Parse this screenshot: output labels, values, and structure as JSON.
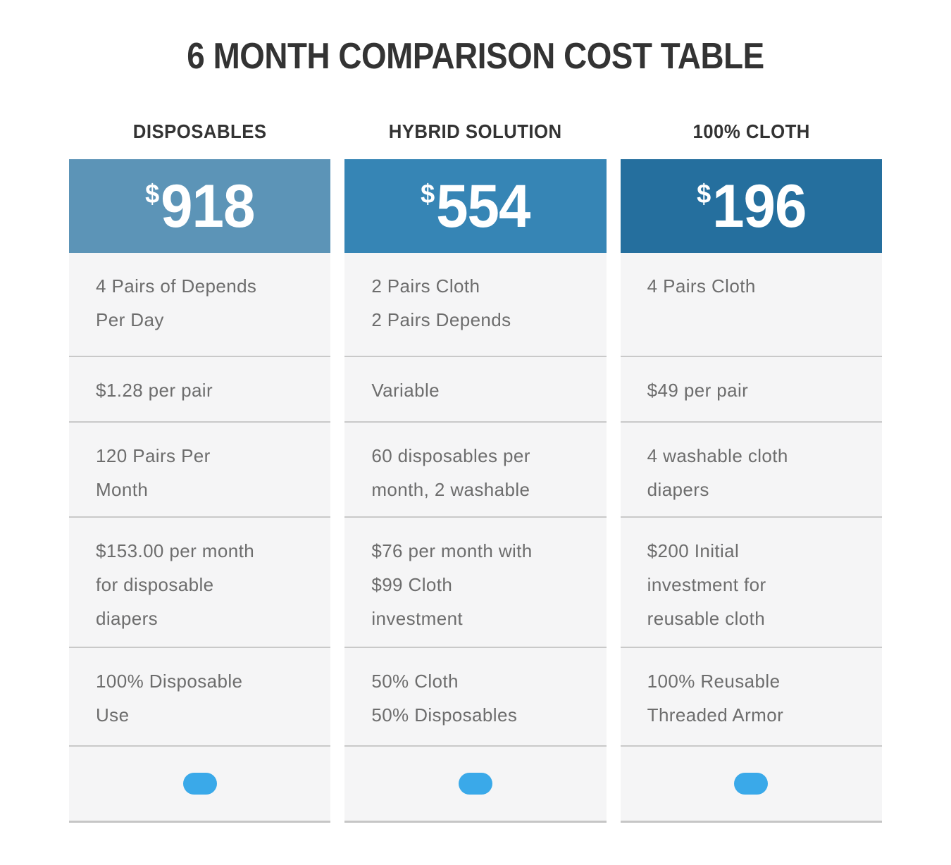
{
  "title": "6 MONTH COMPARISON COST TABLE",
  "colors": {
    "title_text": "#333333",
    "row_background": "#f5f5f6",
    "row_divider": "#c9c9c9",
    "row_text": "#6d6d6d",
    "pill": "#3aa9e9"
  },
  "columns": [
    {
      "label": "DISPOSABLES",
      "currency": "$",
      "price": "918",
      "header_color": "#5c94b7",
      "rows": [
        "4 Pairs of Depends\nPer Day",
        "$1.28 per pair",
        "120 Pairs Per\nMonth",
        "$153.00 per month\nfor disposable\ndiapers",
        "100% Disposable\nUse"
      ]
    },
    {
      "label": "HYBRID SOLUTION",
      "currency": "$",
      "price": "554",
      "header_color": "#3685b5",
      "rows": [
        "2 Pairs Cloth\n2 Pairs Depends",
        "Variable",
        "60 disposables per\nmonth, 2 washable",
        "$76 per month with\n$99 Cloth\ninvestment",
        "50% Cloth\n50% Disposables"
      ]
    },
    {
      "label": "100% CLOTH",
      "currency": "$",
      "price": "196",
      "header_color": "#256f9e",
      "rows": [
        "4 Pairs Cloth",
        "$49 per pair",
        "4 washable cloth\ndiapers",
        "$200 Initial\ninvestment for\nreusable cloth",
        "100% Reusable\nThreaded Armor"
      ]
    }
  ]
}
